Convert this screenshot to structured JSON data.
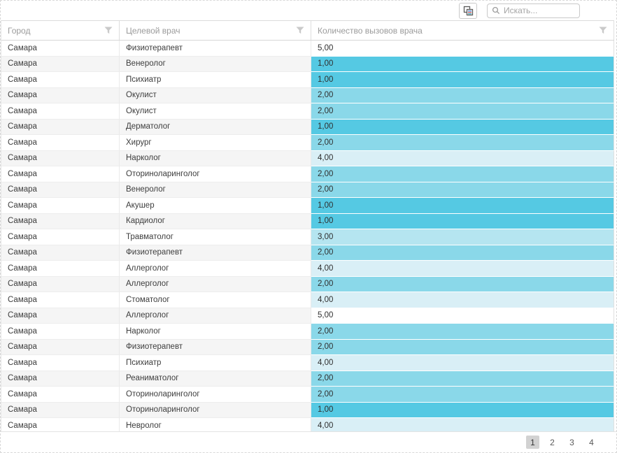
{
  "toolbar": {
    "search_placeholder": "Искать..."
  },
  "grid": {
    "columns": [
      {
        "label": "Город"
      },
      {
        "label": "Целевой врач"
      },
      {
        "label": "Количество вызовов врача"
      }
    ],
    "rows": [
      {
        "city": "Самара",
        "doctor": "Физиотерапевт",
        "calls": "5,00"
      },
      {
        "city": "Самара",
        "doctor": "Венеролог",
        "calls": "1,00"
      },
      {
        "city": "Самара",
        "doctor": "Психиатр",
        "calls": "1,00"
      },
      {
        "city": "Самара",
        "doctor": "Окулист",
        "calls": "2,00"
      },
      {
        "city": "Самара",
        "doctor": "Окулист",
        "calls": "2,00"
      },
      {
        "city": "Самара",
        "doctor": "Дерматолог",
        "calls": "1,00"
      },
      {
        "city": "Самара",
        "doctor": "Хирург",
        "calls": "2,00"
      },
      {
        "city": "Самара",
        "doctor": "Нарколог",
        "calls": "4,00"
      },
      {
        "city": "Самара",
        "doctor": "Оториноларинголог",
        "calls": "2,00"
      },
      {
        "city": "Самара",
        "doctor": "Венеролог",
        "calls": "2,00"
      },
      {
        "city": "Самара",
        "doctor": "Акушер",
        "calls": "1,00"
      },
      {
        "city": "Самара",
        "doctor": "Кардиолог",
        "calls": "1,00"
      },
      {
        "city": "Самара",
        "doctor": "Травматолог",
        "calls": "3,00"
      },
      {
        "city": "Самара",
        "doctor": "Физиотерапевт",
        "calls": "2,00"
      },
      {
        "city": "Самара",
        "doctor": "Аллерголог",
        "calls": "4,00"
      },
      {
        "city": "Самара",
        "doctor": "Аллерголог",
        "calls": "2,00"
      },
      {
        "city": "Самара",
        "doctor": "Стоматолог",
        "calls": "4,00"
      },
      {
        "city": "Самара",
        "doctor": "Аллерголог",
        "calls": "5,00"
      },
      {
        "city": "Самара",
        "doctor": "Нарколог",
        "calls": "2,00"
      },
      {
        "city": "Самара",
        "doctor": "Физиотерапевт",
        "calls": "2,00"
      },
      {
        "city": "Самара",
        "doctor": "Психиатр",
        "calls": "4,00"
      },
      {
        "city": "Самара",
        "doctor": "Реаниматолог",
        "calls": "2,00"
      },
      {
        "city": "Самара",
        "doctor": "Оториноларинголог",
        "calls": "2,00"
      },
      {
        "city": "Самара",
        "doctor": "Оториноларинголог",
        "calls": "1,00"
      },
      {
        "city": "Самара",
        "doctor": "Невролог",
        "calls": "4,00"
      }
    ],
    "value_colors": {
      "1,00": "#55c9e3",
      "2,00": "#8ad8e9",
      "3,00": "#b5e5f0",
      "4,00": "#d9eff6",
      "5,00": "#ffffff"
    }
  },
  "pager": {
    "pages": [
      "1",
      "2",
      "3",
      "4"
    ],
    "current": "1"
  },
  "colors": {
    "accent": "#55c9e3",
    "row_stripe": "#f5f5f5",
    "header_text": "#9b9b9b",
    "filter_icon": "#c9c9c9"
  }
}
